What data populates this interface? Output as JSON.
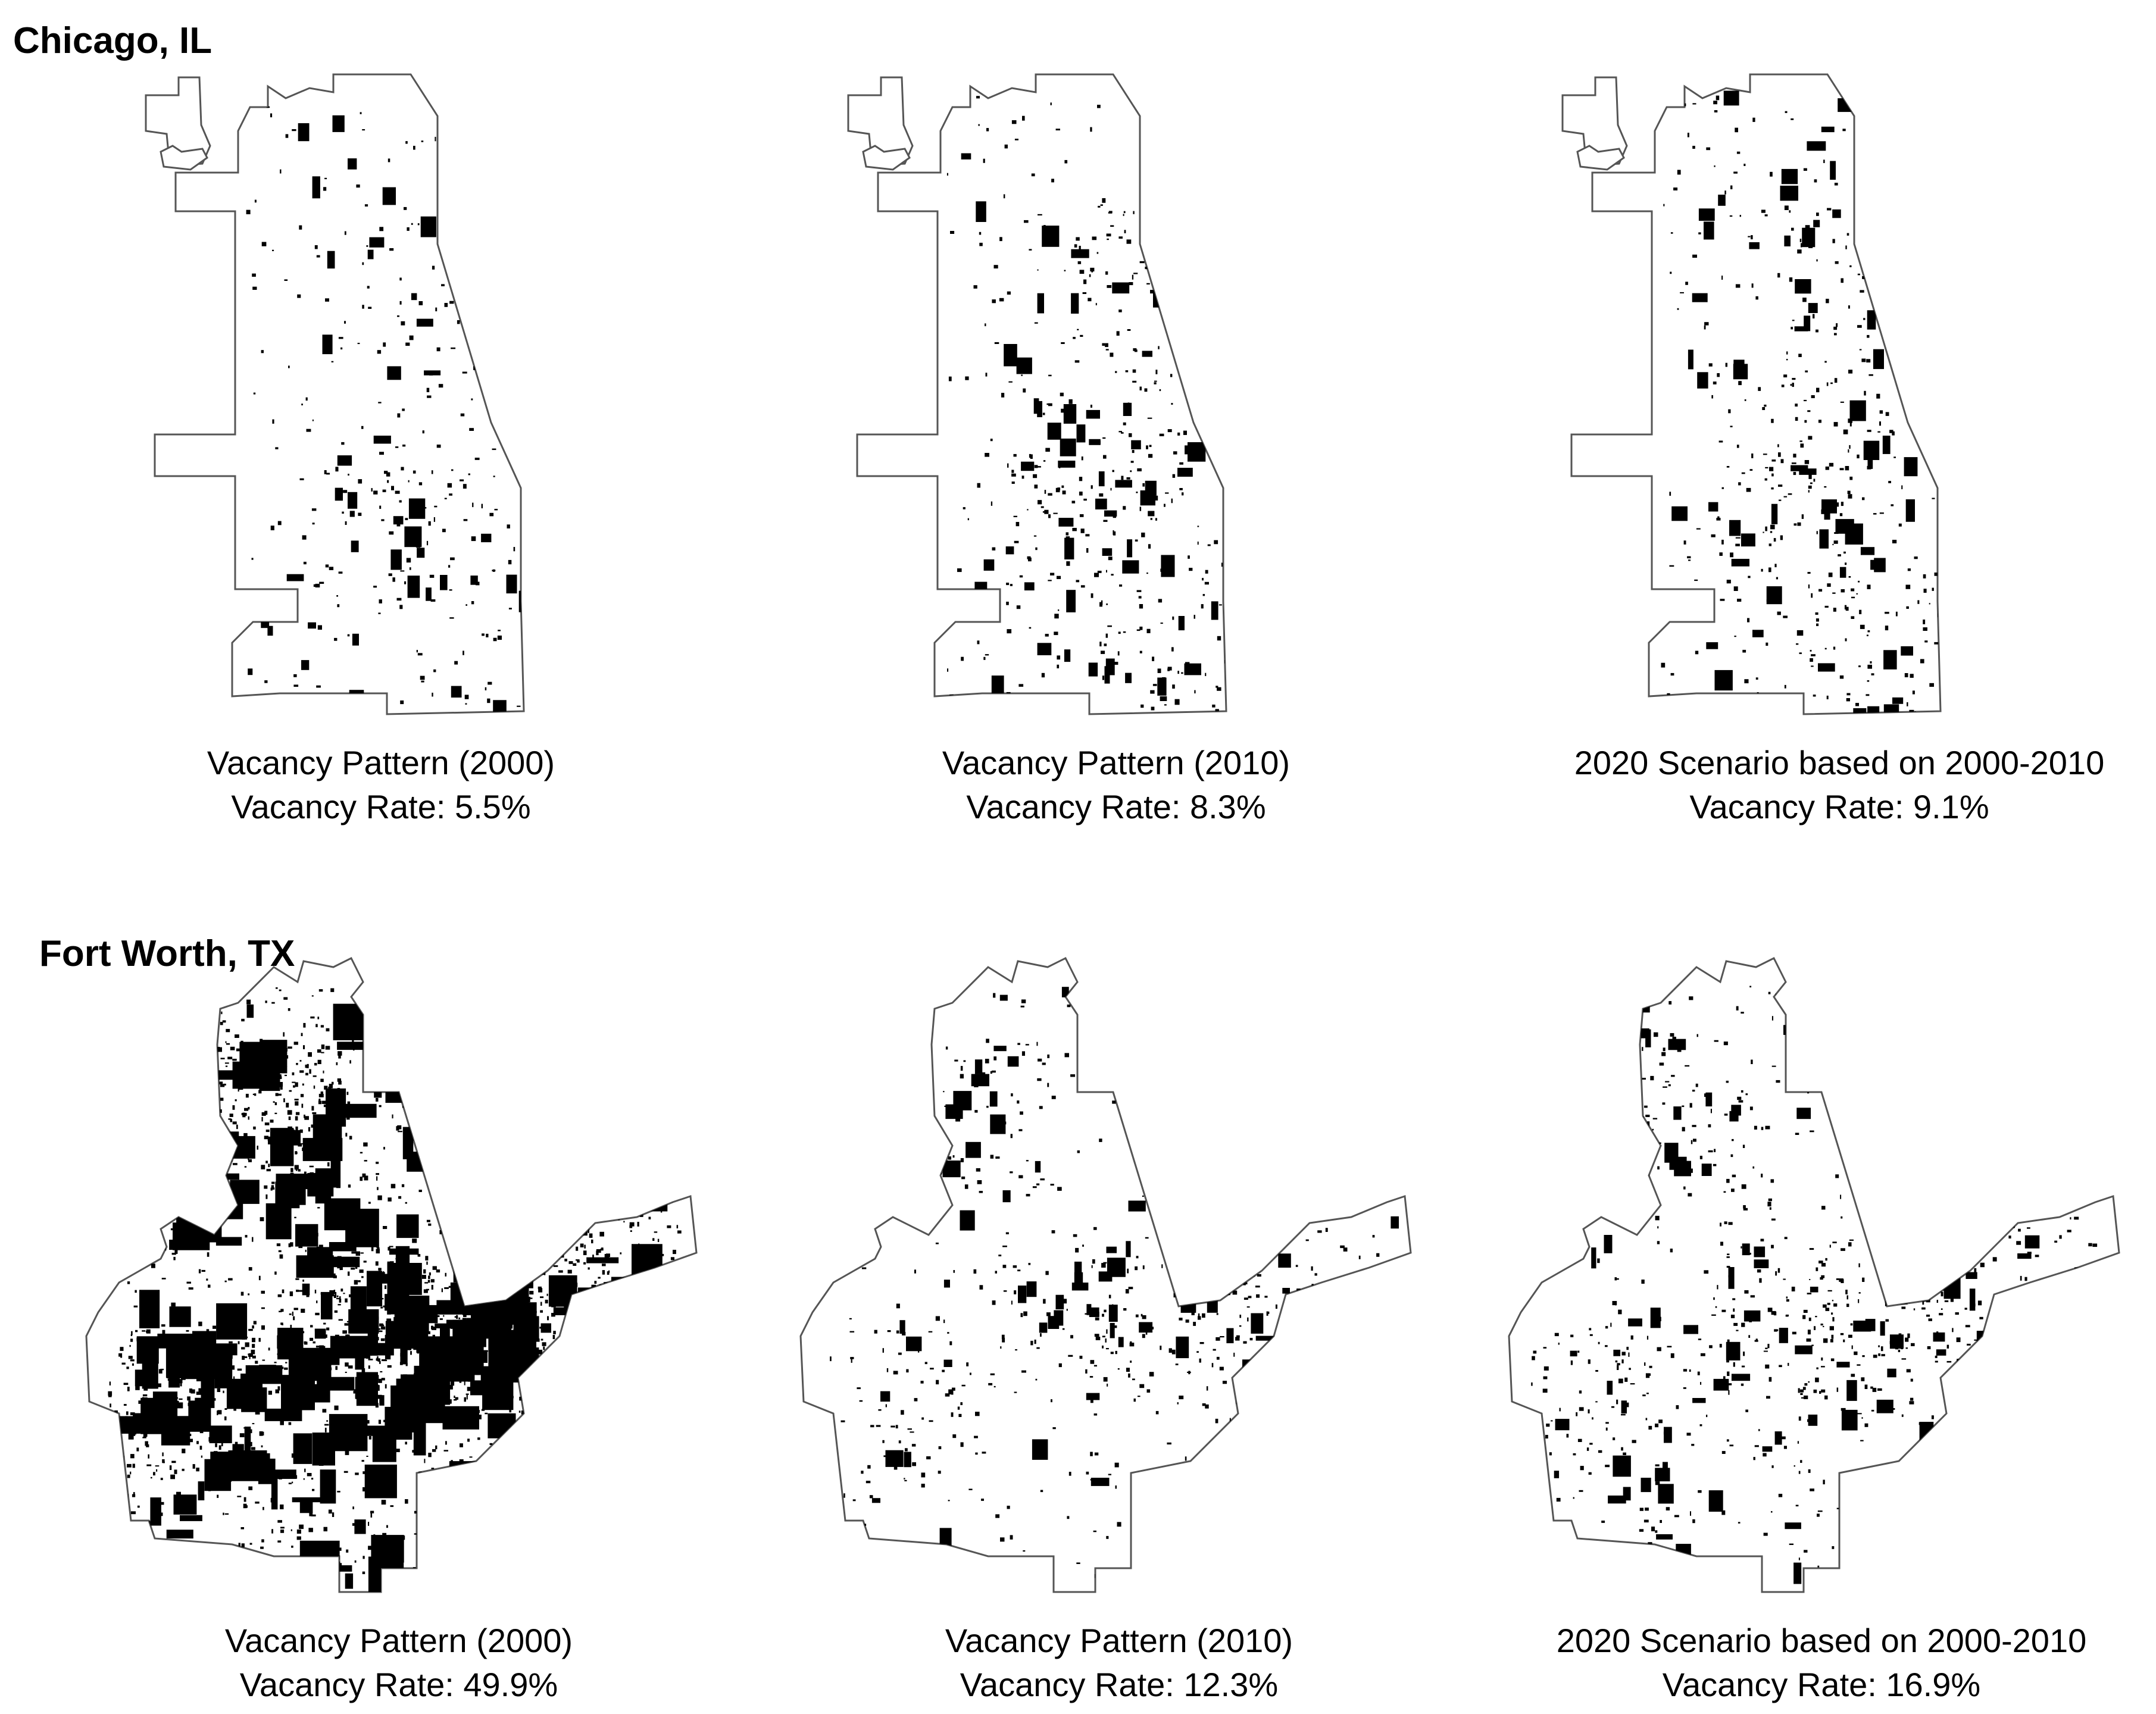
{
  "colors": {
    "outline": "#555555",
    "vacant": "#000000",
    "background": "#ffffff"
  },
  "cities": [
    {
      "name": "Chicago, IL",
      "shape": "chicago",
      "panels": [
        {
          "pattern": "Vacancy Pattern (2000)",
          "rate": "Vacancy Rate: 5.5%",
          "vacancy_rate_pct": 5.5
        },
        {
          "pattern": "Vacancy Pattern (2010)",
          "rate": "Vacancy Rate: 8.3%",
          "vacancy_rate_pct": 8.3
        },
        {
          "pattern": "2020 Scenario based on 2000-2010",
          "rate": "Vacancy Rate: 9.1%",
          "vacancy_rate_pct": 9.1
        }
      ]
    },
    {
      "name": "Fort Worth, TX",
      "shape": "fortworth",
      "panels": [
        {
          "pattern": "Vacancy Pattern (2000)",
          "rate": "Vacancy Rate: 49.9%",
          "vacancy_rate_pct": 49.9
        },
        {
          "pattern": "Vacancy Pattern (2010)",
          "rate": "Vacancy Rate: 12.3%",
          "vacancy_rate_pct": 12.3
        },
        {
          "pattern": "2020 Scenario based on 2000-2010",
          "rate": "Vacancy Rate: 16.9%",
          "vacancy_rate_pct": 16.9
        }
      ]
    }
  ]
}
